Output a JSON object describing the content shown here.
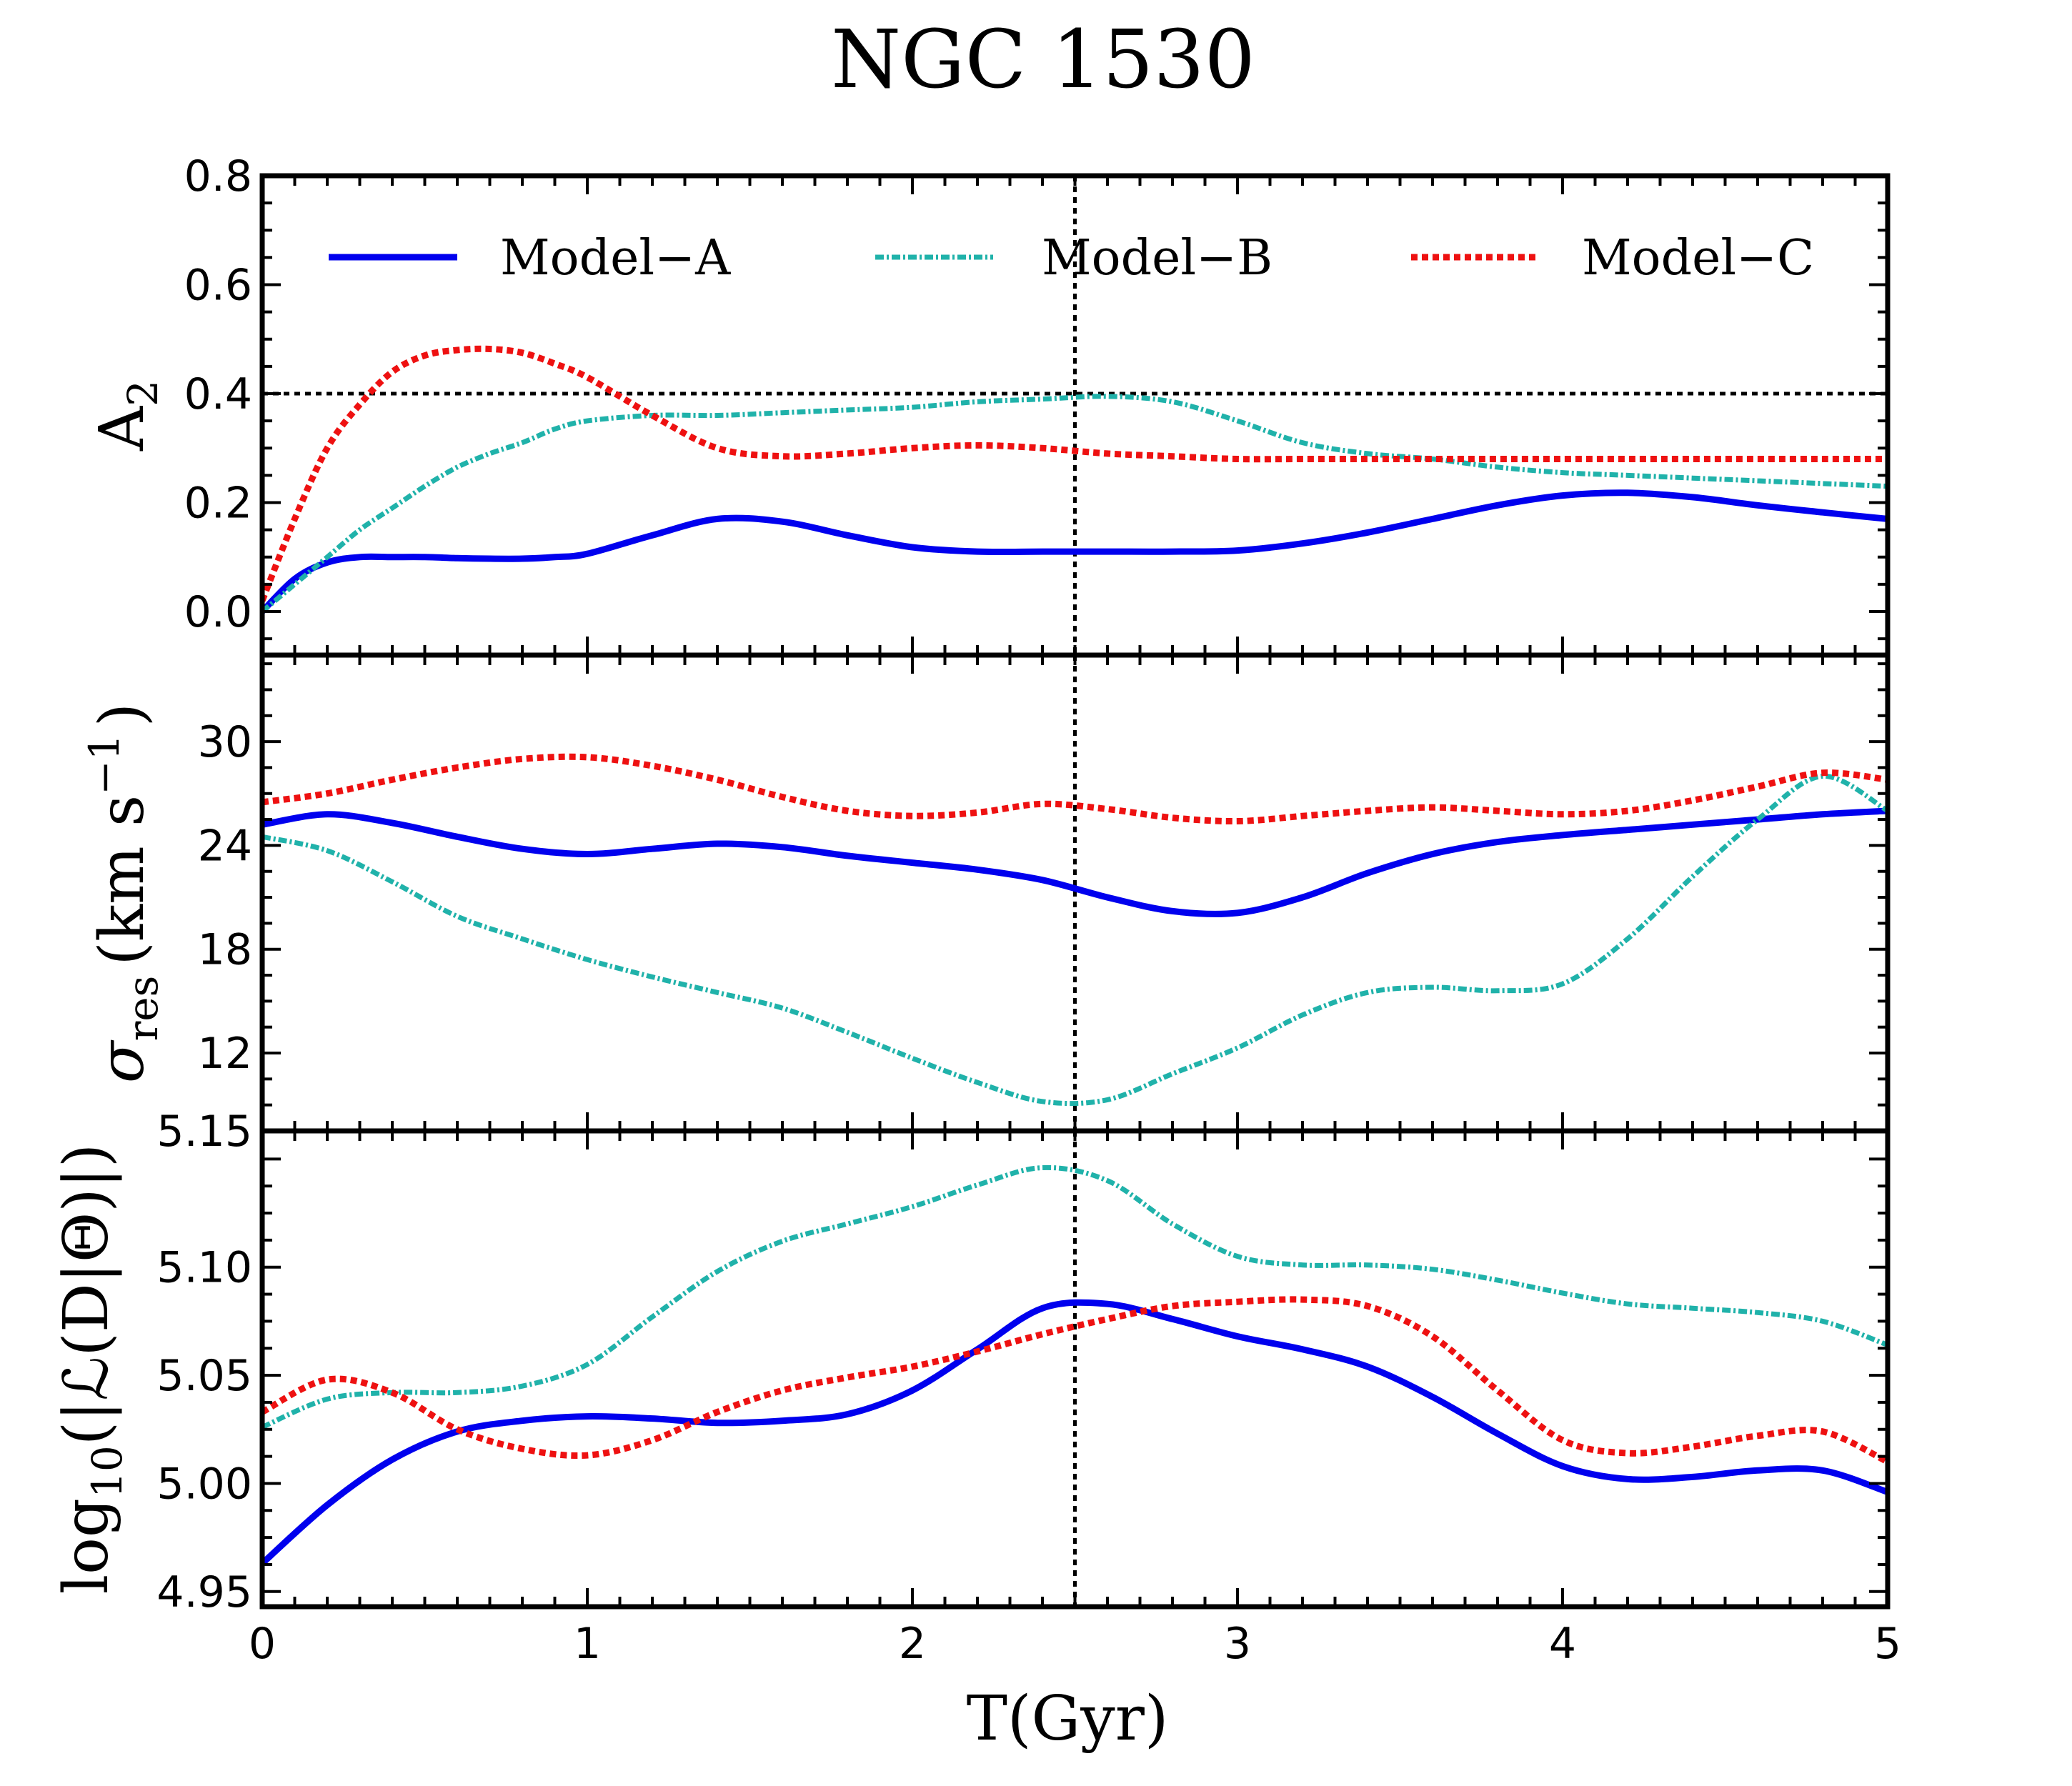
{
  "figure_title": "NGC 1530",
  "colors": {
    "model_a": "#0000ee",
    "model_b": "#20b2aa",
    "model_c": "#ee1111",
    "reference": "#000000"
  },
  "chart_data": [
    {
      "type": "line",
      "panel": "top",
      "ylabel": "A",
      "ylabel_sub": "2",
      "xlim": [
        0,
        5
      ],
      "ylim": [
        -0.08,
        0.8
      ],
      "yticks": [
        0.0,
        0.2,
        0.4,
        0.6
      ],
      "ytick_labels": [
        "0.0",
        "0.2",
        "0.4",
        "0.6"
      ],
      "ytop_label": "0.8",
      "legend_position": "top",
      "reference_lines": {
        "hline": 0.4,
        "vline": 2.5
      },
      "x": [
        0,
        0.1,
        0.2,
        0.3,
        0.4,
        0.5,
        0.6,
        0.7,
        0.8,
        0.9,
        1.0,
        1.2,
        1.4,
        1.6,
        1.8,
        2.0,
        2.2,
        2.4,
        2.6,
        2.8,
        3.0,
        3.2,
        3.4,
        3.6,
        3.8,
        4.0,
        4.2,
        4.4,
        4.6,
        4.8,
        5.0
      ],
      "series": [
        {
          "name": "Model−A",
          "style": "solid",
          "values": [
            0.0,
            0.06,
            0.09,
            0.1,
            0.1,
            0.1,
            0.098,
            0.097,
            0.097,
            0.1,
            0.106,
            0.14,
            0.17,
            0.165,
            0.14,
            0.118,
            0.11,
            0.11,
            0.11,
            0.11,
            0.112,
            0.125,
            0.145,
            0.17,
            0.195,
            0.213,
            0.218,
            0.21,
            0.195,
            0.182,
            0.17
          ]
        },
        {
          "name": "Model−B",
          "style": "dashdot",
          "values": [
            0.0,
            0.05,
            0.1,
            0.15,
            0.19,
            0.23,
            0.265,
            0.29,
            0.31,
            0.335,
            0.35,
            0.36,
            0.36,
            0.365,
            0.37,
            0.375,
            0.385,
            0.39,
            0.395,
            0.385,
            0.35,
            0.31,
            0.29,
            0.28,
            0.265,
            0.255,
            0.25,
            0.245,
            0.24,
            0.235,
            0.23
          ]
        },
        {
          "name": "Model−C",
          "style": "dotted",
          "values": [
            0.02,
            0.17,
            0.3,
            0.38,
            0.44,
            0.47,
            0.48,
            0.482,
            0.475,
            0.455,
            0.43,
            0.36,
            0.3,
            0.285,
            0.29,
            0.3,
            0.305,
            0.3,
            0.29,
            0.285,
            0.28,
            0.28,
            0.28,
            0.28,
            0.28,
            0.28,
            0.28,
            0.28,
            0.28,
            0.28,
            0.28
          ]
        }
      ]
    },
    {
      "type": "line",
      "panel": "middle",
      "ylabel": "σ",
      "ylabel_sub": "res",
      "ylabel_units": "(km s",
      "ylabel_units_sup": "−1",
      "ylabel_units_end": ")",
      "xlim": [
        0,
        5
      ],
      "ylim": [
        7.5,
        35
      ],
      "yticks": [
        12,
        18,
        24,
        30
      ],
      "ytick_labels": [
        "12",
        "18",
        "24",
        "30"
      ],
      "reference_lines": {
        "vline": 2.5
      },
      "x": [
        0,
        0.2,
        0.4,
        0.6,
        0.8,
        1.0,
        1.2,
        1.4,
        1.6,
        1.8,
        2.0,
        2.2,
        2.4,
        2.6,
        2.8,
        3.0,
        3.2,
        3.4,
        3.6,
        3.8,
        4.0,
        4.2,
        4.4,
        4.6,
        4.8,
        5.0
      ],
      "series": [
        {
          "name": "Model−A",
          "style": "solid",
          "values": [
            25.2,
            25.8,
            25.3,
            24.5,
            23.8,
            23.5,
            23.8,
            24.1,
            23.9,
            23.4,
            23.0,
            22.6,
            22.0,
            21.0,
            20.2,
            20.1,
            21.0,
            22.4,
            23.5,
            24.2,
            24.6,
            24.9,
            25.2,
            25.5,
            25.8,
            26.0
          ]
        },
        {
          "name": "Model−B",
          "style": "dashdot",
          "values": [
            24.5,
            23.7,
            21.9,
            19.9,
            18.6,
            17.4,
            16.4,
            15.5,
            14.6,
            13.2,
            11.7,
            10.3,
            9.2,
            9.3,
            10.8,
            12.3,
            14.2,
            15.5,
            15.8,
            15.6,
            16.0,
            18.6,
            22.2,
            25.5,
            28.0,
            26.0
          ]
        },
        {
          "name": "Model−C",
          "style": "dotted",
          "values": [
            26.5,
            27.0,
            27.8,
            28.5,
            29.0,
            29.1,
            28.6,
            27.8,
            26.8,
            26.0,
            25.7,
            25.9,
            26.4,
            26.1,
            25.6,
            25.4,
            25.7,
            26.0,
            26.2,
            26.0,
            25.8,
            26.0,
            26.6,
            27.4,
            28.2,
            27.8
          ]
        }
      ]
    },
    {
      "type": "line",
      "panel": "bottom",
      "ylabel": "log",
      "ylabel_sub": "10",
      "ylabel_rest": "(|ℒ(D|Θ)|)",
      "xlabel": "T(Gyr)",
      "xlim": [
        0,
        5
      ],
      "ylim": [
        4.943,
        5.163
      ],
      "xticks": [
        0,
        1,
        2,
        3,
        4,
        5
      ],
      "xtick_labels": [
        "0",
        "1",
        "2",
        "3",
        "4",
        "5"
      ],
      "yticks": [
        4.95,
        5.0,
        5.05,
        5.1
      ],
      "ytick_labels": [
        "4.95",
        "5.00",
        "5.05",
        "5.10"
      ],
      "ytop_label": "5.15",
      "reference_lines": {
        "vline": 2.5
      },
      "x": [
        0,
        0.2,
        0.4,
        0.6,
        0.8,
        1.0,
        1.2,
        1.4,
        1.6,
        1.8,
        2.0,
        2.2,
        2.4,
        2.6,
        2.8,
        3.0,
        3.2,
        3.4,
        3.6,
        3.8,
        4.0,
        4.2,
        4.4,
        4.6,
        4.8,
        5.0
      ],
      "series": [
        {
          "name": "Model−A",
          "style": "solid",
          "values": [
            4.963,
            4.99,
            5.011,
            5.024,
            5.029,
            5.031,
            5.03,
            5.028,
            5.029,
            5.032,
            5.043,
            5.062,
            5.081,
            5.083,
            5.076,
            5.068,
            5.062,
            5.054,
            5.04,
            5.023,
            5.008,
            5.002,
            5.003,
            5.006,
            5.006,
            4.996
          ]
        },
        {
          "name": "Model−B",
          "style": "dashdot",
          "values": [
            5.026,
            5.039,
            5.042,
            5.042,
            5.045,
            5.055,
            5.077,
            5.098,
            5.112,
            5.12,
            5.128,
            5.138,
            5.146,
            5.14,
            5.12,
            5.105,
            5.101,
            5.101,
            5.099,
            5.094,
            5.088,
            5.083,
            5.081,
            5.079,
            5.075,
            5.064
          ]
        },
        {
          "name": "Model−C",
          "style": "dotted",
          "values": [
            5.033,
            5.048,
            5.042,
            5.025,
            5.016,
            5.013,
            5.02,
            5.033,
            5.043,
            5.049,
            5.054,
            5.061,
            5.069,
            5.076,
            5.082,
            5.084,
            5.085,
            5.082,
            5.068,
            5.043,
            5.02,
            5.014,
            5.017,
            5.022,
            5.024,
            5.01
          ]
        }
      ]
    }
  ]
}
